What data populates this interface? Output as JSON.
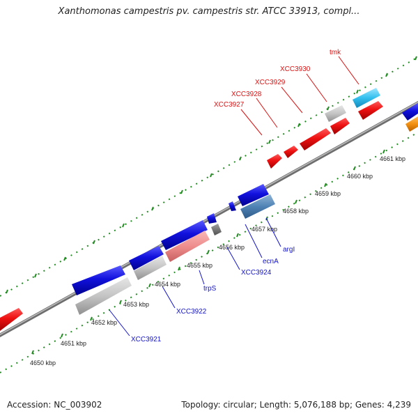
{
  "title": "Xanthomonas campestris pv. campestris str. ATCC 33913, compl...",
  "footer": {
    "accession": "Accession: NC_003902",
    "summary": "Topology: circular; Length: 5,076,188 bp; Genes: 4,239"
  },
  "colors": {
    "backbone": "#808080",
    "forward_gene": "#ee1111",
    "reverse_gene": "#1111dd",
    "tick": "#228b22",
    "label_red": "#dd1111",
    "label_blue": "#1111cc"
  },
  "scale": {
    "unit": "kbp",
    "labels": [
      "4650 kbp",
      "4651 kbp",
      "4652 kbp",
      "4653 kbp",
      "4654 kbp",
      "4655 kbp",
      "4656 kbp",
      "4657 kbp",
      "4658 kbp",
      "4659 kbp",
      "4660 kbp",
      "4661 kbp"
    ]
  },
  "top_labels": [
    "XCC3927",
    "XCC3928",
    "XCC3929",
    "XCC3930",
    "tmk"
  ],
  "bottom_labels": [
    "XCC3921",
    "XCC3922",
    "trpS",
    "XCC3924",
    "ecnA",
    "argI"
  ]
}
